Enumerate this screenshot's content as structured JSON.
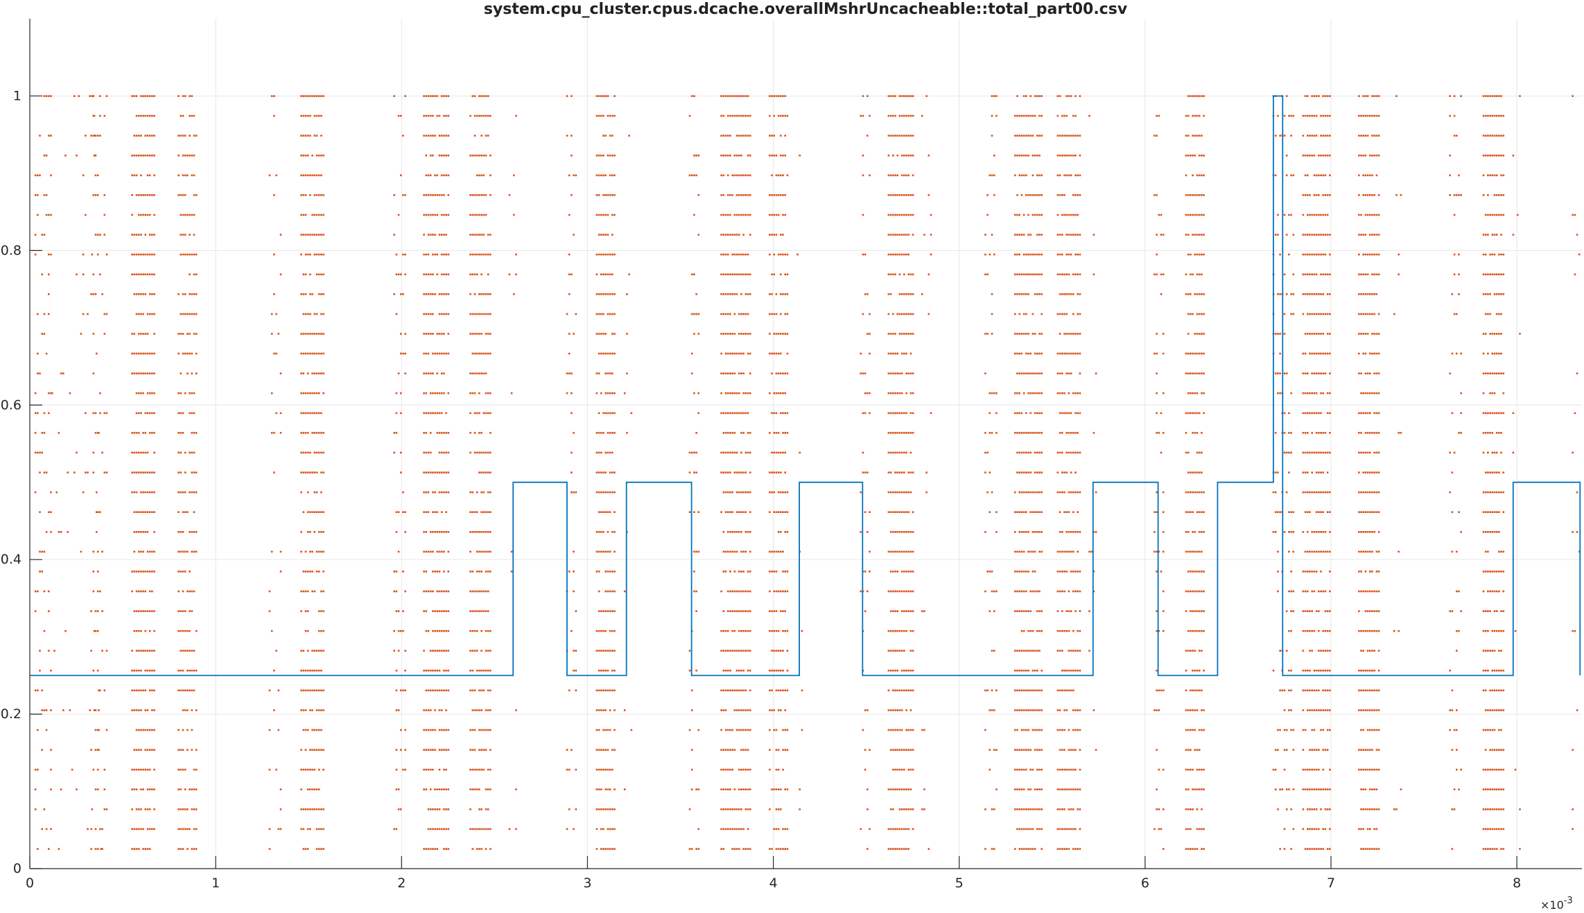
{
  "chart_data": {
    "type": "line",
    "title": "system.cpu_cluster.cpus.dcache.overallMshrUncacheable::total_part00.csv",
    "xlabel": "",
    "ylabel": "",
    "xlim": [
      0,
      8.35
    ],
    "ylim": [
      0,
      1.1
    ],
    "x_exponent_label": "×10",
    "x_exponent_power": "-3",
    "x_ticks": [
      0,
      1,
      2,
      3,
      4,
      5,
      6,
      7,
      8
    ],
    "x_tick_labels": [
      "0",
      "1",
      "2",
      "3",
      "4",
      "5",
      "6",
      "7",
      "8"
    ],
    "y_ticks": [
      0,
      0.2,
      0.4,
      0.6,
      0.8,
      1
    ],
    "y_tick_labels": [
      "0",
      "0.2",
      "0.4",
      "0.6",
      "0.8",
      "1"
    ],
    "grid": true,
    "series": [
      {
        "style": "step-line",
        "color": "#0072bd",
        "x": [
          0,
          2.6,
          2.6,
          2.89,
          2.89,
          3.21,
          3.21,
          3.56,
          3.56,
          4.14,
          4.14,
          4.48,
          4.48,
          5.72,
          5.72,
          6.07,
          6.07,
          6.39,
          6.39,
          6.69,
          6.69,
          6.74,
          6.74,
          7.98,
          7.98,
          8.34,
          8.34
        ],
        "y": [
          0.25,
          0.25,
          0.5,
          0.5,
          0.25,
          0.25,
          0.5,
          0.5,
          0.25,
          0.25,
          0.5,
          0.5,
          0.25,
          0.25,
          0.5,
          0.5,
          0.25,
          0.25,
          0.5,
          0.5,
          1.0,
          1.0,
          0.25,
          0.25,
          0.5,
          0.5,
          0.25
        ]
      },
      {
        "style": "scatter",
        "color": "#d95319",
        "y_levels": [
          0.0256,
          0.0513,
          0.0769,
          0.1026,
          0.1282,
          0.1538,
          0.1795,
          0.2051,
          0.2308,
          0.2564,
          0.2821,
          0.3077,
          0.3333,
          0.359,
          0.3846,
          0.4103,
          0.4359,
          0.4615,
          0.4872,
          0.5128,
          0.5385,
          0.5641,
          0.5897,
          0.6154,
          0.641,
          0.6667,
          0.6923,
          0.7179,
          0.7436,
          0.7692,
          0.7949,
          0.8205,
          0.8462,
          0.8718,
          0.8974,
          0.9231,
          0.9487,
          0.9744,
          1.0
        ],
        "clusters": [
          {
            "x": [
              0.03,
              0.12
            ],
            "density": 0.35
          },
          {
            "x": [
              0.12,
              0.4
            ],
            "density": 0.05
          },
          {
            "x": [
              0.33,
              0.42
            ],
            "density": 0.3
          },
          {
            "x": [
              0.55,
              0.67
            ],
            "density": 0.85
          },
          {
            "x": [
              0.8,
              0.9
            ],
            "density": 0.75
          },
          {
            "x": [
              1.29,
              1.36
            ],
            "density": 0.25
          },
          {
            "x": [
              1.46,
              1.58
            ],
            "density": 0.8
          },
          {
            "x": [
              1.96,
              2.02
            ],
            "density": 0.3
          },
          {
            "x": [
              2.12,
              2.26
            ],
            "density": 0.85
          },
          {
            "x": [
              2.37,
              2.48
            ],
            "density": 0.8
          },
          {
            "x": [
              2.58,
              2.62
            ],
            "density": 0.08
          },
          {
            "x": [
              2.89,
              2.94
            ],
            "density": 0.25
          },
          {
            "x": [
              3.05,
              3.15
            ],
            "density": 0.85
          },
          {
            "x": [
              3.2,
              3.24
            ],
            "density": 0.08
          },
          {
            "x": [
              3.55,
              3.6
            ],
            "density": 0.3
          },
          {
            "x": [
              3.72,
              3.88
            ],
            "density": 0.85
          },
          {
            "x": [
              3.98,
              4.08
            ],
            "density": 0.8
          },
          {
            "x": [
              4.13,
              4.16
            ],
            "density": 0.08
          },
          {
            "x": [
              4.47,
              4.52
            ],
            "density": 0.3
          },
          {
            "x": [
              4.62,
              4.76
            ],
            "density": 0.85
          },
          {
            "x": [
              4.8,
              4.86
            ],
            "density": 0.08
          },
          {
            "x": [
              5.14,
              5.2
            ],
            "density": 0.3
          },
          {
            "x": [
              5.3,
              5.45
            ],
            "density": 0.85
          },
          {
            "x": [
              5.53,
              5.65
            ],
            "density": 0.8
          },
          {
            "x": [
              5.7,
              5.74
            ],
            "density": 0.08
          },
          {
            "x": [
              6.05,
              6.1
            ],
            "density": 0.3
          },
          {
            "x": [
              6.22,
              6.32
            ],
            "density": 0.85
          },
          {
            "x": [
              6.69,
              6.8
            ],
            "density": 0.4
          },
          {
            "x": [
              6.85,
              7.0
            ],
            "density": 0.85
          },
          {
            "x": [
              7.15,
              7.26
            ],
            "density": 0.85
          },
          {
            "x": [
              7.34,
              7.38
            ],
            "density": 0.08
          },
          {
            "x": [
              7.64,
              7.7
            ],
            "density": 0.3
          },
          {
            "x": [
              7.82,
              7.93
            ],
            "density": 0.85
          },
          {
            "x": [
              7.98,
              8.02
            ],
            "density": 0.08
          },
          {
            "x": [
              8.3,
              8.34
            ],
            "density": 0.08
          }
        ]
      }
    ]
  }
}
